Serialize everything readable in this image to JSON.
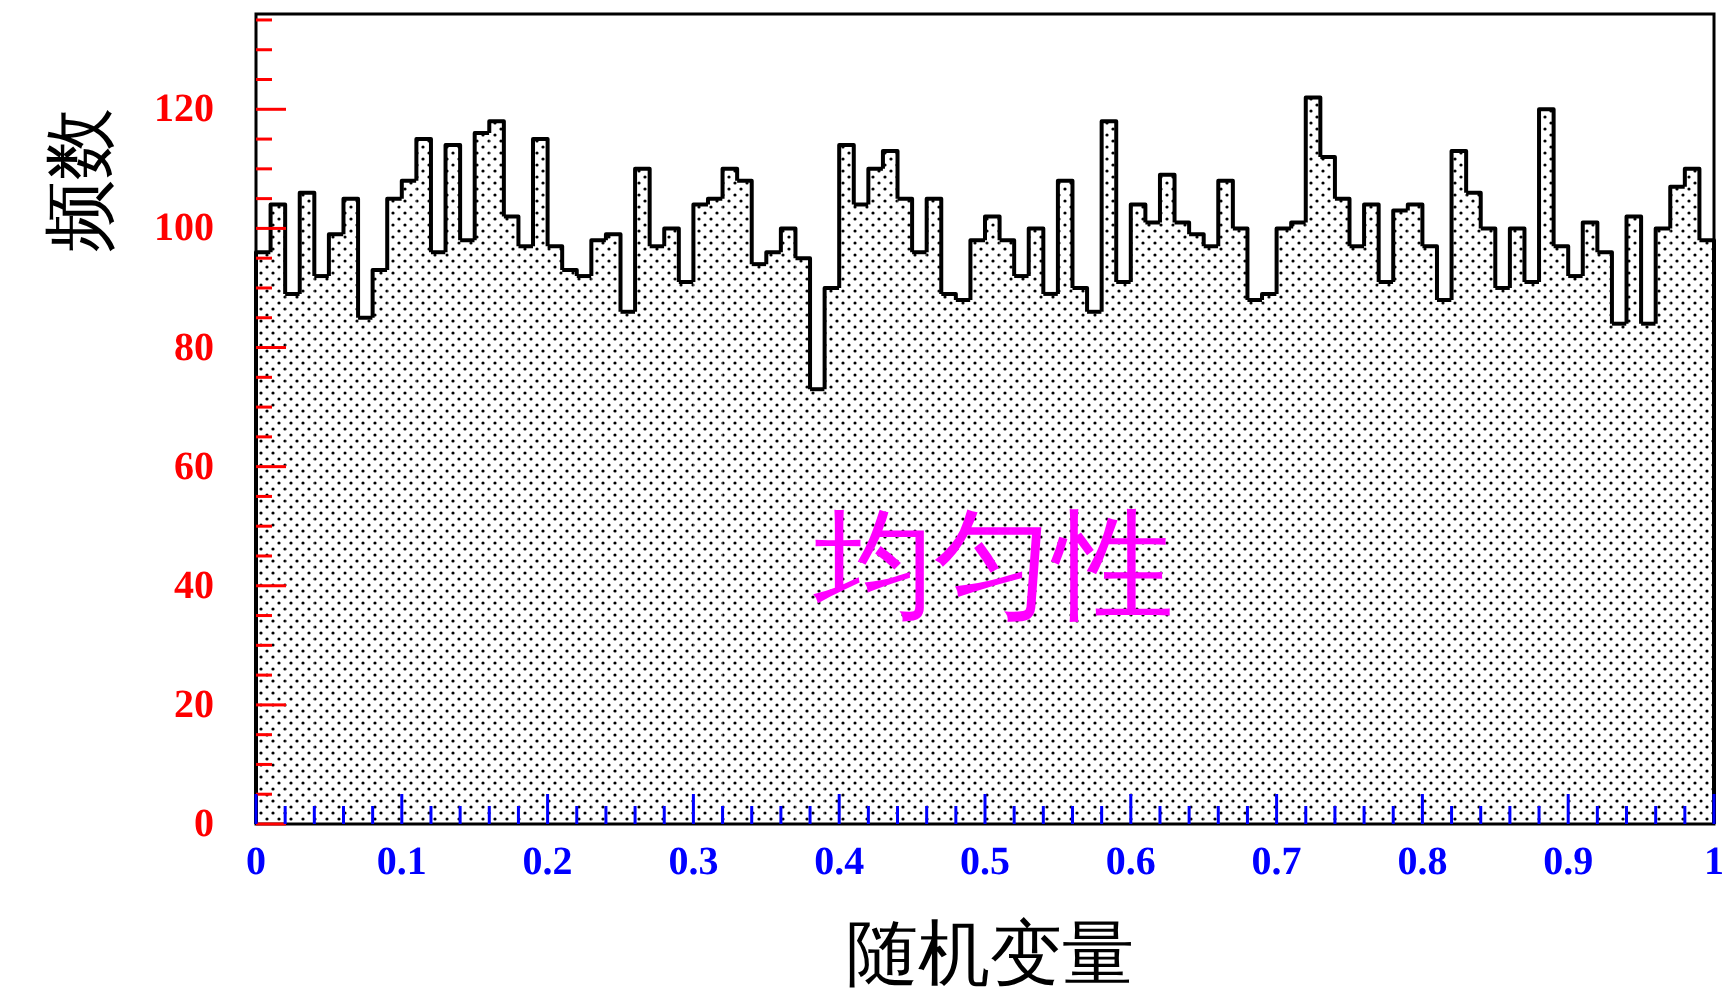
{
  "chart_data": {
    "type": "histogram",
    "xlabel": "随机变量",
    "ylabel": "频数",
    "annotations": [
      "均匀性"
    ],
    "color": "#000000",
    "bins": [
      0,
      0.01,
      0.02,
      0.03,
      0.04,
      0.05,
      0.06,
      0.07,
      0.08,
      0.09,
      0.1,
      0.11,
      0.12,
      0.13,
      0.14,
      0.15,
      0.16,
      0.17,
      0.18,
      0.19,
      0.2,
      0.21,
      0.22,
      0.23,
      0.24,
      0.25,
      0.26,
      0.27,
      0.28,
      0.29,
      0.3,
      0.31,
      0.32,
      0.33,
      0.34,
      0.35,
      0.36,
      0.37,
      0.38,
      0.39,
      0.4,
      0.41,
      0.42,
      0.43,
      0.44,
      0.45,
      0.46,
      0.47,
      0.48,
      0.49,
      0.5,
      0.51,
      0.52,
      0.53,
      0.54,
      0.55,
      0.56,
      0.57,
      0.58,
      0.59,
      0.6,
      0.61,
      0.62,
      0.63,
      0.64,
      0.65,
      0.66,
      0.67,
      0.68,
      0.69,
      0.7,
      0.71,
      0.72,
      0.73,
      0.74,
      0.75,
      0.76,
      0.77,
      0.78,
      0.79,
      0.8,
      0.81,
      0.82,
      0.83,
      0.84,
      0.85,
      0.86,
      0.87,
      0.88,
      0.89,
      0.9,
      0.91,
      0.92,
      0.93,
      0.94,
      0.95,
      0.96,
      0.97,
      0.98,
      0.99,
      1
    ],
    "values": [
      96,
      104,
      89,
      106,
      92,
      99,
      105,
      85,
      93,
      105,
      108,
      115,
      96,
      114,
      98,
      116,
      118,
      102,
      97,
      115,
      97,
      93,
      92,
      98,
      99,
      86,
      110,
      97,
      100,
      91,
      104,
      105,
      110,
      108,
      94,
      96,
      100,
      95,
      73,
      90,
      114,
      104,
      110,
      113,
      105,
      96,
      105,
      89,
      88,
      98,
      102,
      98,
      92,
      100,
      89,
      108,
      90,
      86,
      118,
      91,
      104,
      101,
      109,
      101,
      99,
      97,
      108,
      100,
      88,
      89,
      100,
      101,
      122,
      112,
      105,
      97,
      104,
      91,
      103,
      104,
      97,
      88,
      113,
      106,
      100,
      90,
      100,
      91,
      120,
      97,
      92,
      101,
      96,
      84,
      102,
      84,
      100,
      107,
      110,
      98
    ],
    "xlim": [
      0,
      1
    ],
    "ylim": [
      0,
      136
    ],
    "xticks": [
      0,
      {
        "value": 0.02,
        "label": null
      },
      {
        "value": 0.04,
        "label": null
      },
      {
        "value": 0.06,
        "label": null
      },
      {
        "value": 0.08,
        "label": null
      },
      0.1,
      {
        "value": 0.12,
        "label": null
      },
      {
        "value": 0.14,
        "label": null
      },
      {
        "value": 0.16,
        "label": null
      },
      {
        "value": 0.18,
        "label": null
      },
      0.2,
      {
        "value": 0.22,
        "label": null
      },
      {
        "value": 0.24,
        "label": null
      },
      {
        "value": 0.26,
        "label": null
      },
      {
        "value": 0.28,
        "label": null
      },
      0.3,
      {
        "value": 0.32,
        "label": null
      },
      {
        "value": 0.34,
        "label": null
      },
      {
        "value": 0.36,
        "label": null
      },
      {
        "value": 0.38,
        "label": null
      },
      0.4,
      {
        "value": 0.42,
        "label": null
      },
      {
        "value": 0.44,
        "label": null
      },
      {
        "value": 0.46,
        "label": null
      },
      {
        "value": 0.48,
        "label": null
      },
      0.5,
      {
        "value": 0.52,
        "label": null
      },
      {
        "value": 0.54,
        "label": null
      },
      {
        "value": 0.56,
        "label": null
      },
      {
        "value": 0.58,
        "label": null
      },
      0.6,
      {
        "value": 0.62,
        "label": null
      },
      {
        "value": 0.64,
        "label": null
      },
      {
        "value": 0.66,
        "label": null
      },
      {
        "value": 0.68,
        "label": null
      },
      0.7,
      {
        "value": 0.72,
        "label": null
      },
      {
        "value": 0.74,
        "label": null
      },
      {
        "value": 0.76,
        "label": null
      },
      {
        "value": 0.78,
        "label": null
      },
      0.8,
      {
        "value": 0.82,
        "label": null
      },
      {
        "value": 0.84,
        "label": null
      },
      {
        "value": 0.86,
        "label": null
      },
      {
        "value": 0.88,
        "label": null
      },
      0.9,
      {
        "value": 0.92,
        "label": null
      },
      {
        "value": 0.94,
        "label": null
      },
      {
        "value": 0.96,
        "label": null
      },
      {
        "value": 0.98,
        "label": null
      },
      1
    ],
    "yticks": [
      0,
      {
        "value": 5,
        "label": null
      },
      {
        "value": 10,
        "label": null
      },
      {
        "value": 15,
        "label": null
      },
      20,
      {
        "value": 25,
        "label": null
      },
      {
        "value": 30,
        "label": null
      },
      {
        "value": 35,
        "label": null
      },
      40,
      {
        "value": 45,
        "label": null
      },
      {
        "value": 50,
        "label": null
      },
      {
        "value": 55,
        "label": null
      },
      60,
      {
        "value": 65,
        "label": null
      },
      {
        "value": 70,
        "label": null
      },
      {
        "value": 75,
        "label": null
      },
      80,
      {
        "value": 85,
        "label": null
      },
      {
        "value": 90,
        "label": null
      },
      {
        "value": 95,
        "label": null
      },
      100,
      {
        "value": 105,
        "label": null
      },
      {
        "value": 110,
        "label": null
      },
      {
        "value": 115,
        "label": null
      },
      120,
      {
        "value": 125,
        "label": null
      },
      {
        "value": 130,
        "label": null
      },
      {
        "value": 135,
        "label": null
      }
    ]
  }
}
